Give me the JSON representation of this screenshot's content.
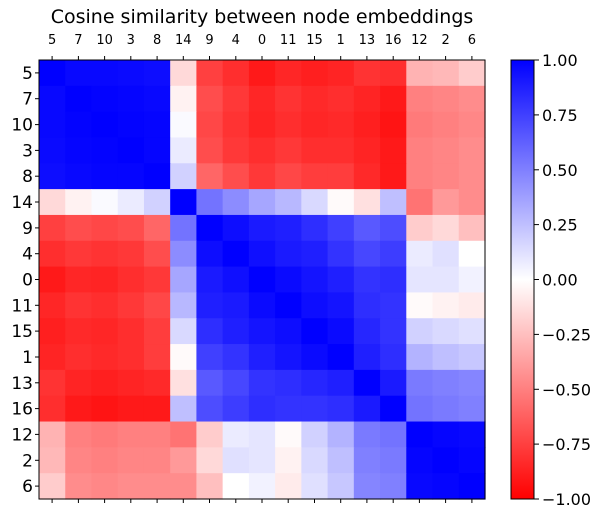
{
  "chart_data": {
    "type": "heatmap",
    "title": "Cosine similarity between node embeddings",
    "labels": [
      "5",
      "7",
      "10",
      "3",
      "8",
      "14",
      "9",
      "4",
      "0",
      "11",
      "15",
      "1",
      "13",
      "16",
      "12",
      "2",
      "6"
    ],
    "colormap": "bwr",
    "vmin": -1.0,
    "vmax": 1.0,
    "colorbar_ticks": [
      "1.00",
      "0.75",
      "0.50",
      "0.25",
      "0.00",
      "−0.25",
      "−0.50",
      "−0.75",
      "−1.00"
    ],
    "colorbar_tick_values": [
      1.0,
      0.75,
      0.5,
      0.25,
      0.0,
      -0.25,
      -0.5,
      -0.75,
      -1.0
    ],
    "values": [
      [
        1.0,
        0.97,
        0.97,
        0.96,
        0.95,
        -0.15,
        -0.75,
        -0.82,
        -0.9,
        -0.85,
        -0.88,
        -0.86,
        -0.8,
        -0.82,
        -0.3,
        -0.28,
        -0.2
      ],
      [
        0.97,
        1.0,
        0.99,
        0.98,
        0.97,
        -0.05,
        -0.7,
        -0.78,
        -0.85,
        -0.8,
        -0.84,
        -0.82,
        -0.86,
        -0.9,
        -0.5,
        -0.48,
        -0.45
      ],
      [
        0.97,
        0.99,
        1.0,
        0.99,
        0.98,
        0.02,
        -0.72,
        -0.8,
        -0.86,
        -0.82,
        -0.85,
        -0.84,
        -0.88,
        -0.92,
        -0.52,
        -0.5,
        -0.47
      ],
      [
        0.96,
        0.98,
        0.99,
        1.0,
        0.98,
        0.08,
        -0.7,
        -0.78,
        -0.82,
        -0.78,
        -0.82,
        -0.82,
        -0.86,
        -0.9,
        -0.5,
        -0.48,
        -0.45
      ],
      [
        0.95,
        0.97,
        0.98,
        0.98,
        1.0,
        0.18,
        -0.6,
        -0.7,
        -0.78,
        -0.72,
        -0.76,
        -0.76,
        -0.84,
        -0.9,
        -0.5,
        -0.48,
        -0.45
      ],
      [
        -0.15,
        -0.05,
        0.02,
        0.08,
        0.18,
        1.0,
        0.55,
        0.45,
        0.35,
        0.28,
        0.15,
        -0.02,
        -0.12,
        0.25,
        -0.55,
        -0.4,
        -0.45
      ],
      [
        -0.75,
        -0.7,
        -0.72,
        -0.7,
        -0.6,
        0.55,
        1.0,
        0.95,
        0.9,
        0.88,
        0.82,
        0.75,
        0.65,
        0.7,
        -0.2,
        -0.15,
        -0.25
      ],
      [
        -0.82,
        -0.78,
        -0.8,
        -0.78,
        -0.7,
        0.45,
        0.95,
        1.0,
        0.94,
        0.9,
        0.88,
        0.8,
        0.72,
        0.76,
        0.08,
        0.12,
        0.0
      ],
      [
        -0.9,
        -0.85,
        -0.86,
        -0.82,
        -0.78,
        0.35,
        0.9,
        0.94,
        1.0,
        0.96,
        0.92,
        0.88,
        0.8,
        0.82,
        0.1,
        0.1,
        0.05
      ],
      [
        -0.85,
        -0.8,
        -0.82,
        -0.78,
        -0.72,
        0.28,
        0.88,
        0.9,
        0.96,
        1.0,
        0.95,
        0.92,
        0.82,
        0.8,
        -0.02,
        -0.05,
        -0.08
      ],
      [
        -0.88,
        -0.84,
        -0.85,
        -0.82,
        -0.76,
        0.15,
        0.82,
        0.88,
        0.92,
        0.95,
        1.0,
        0.96,
        0.85,
        0.8,
        0.18,
        0.15,
        0.12
      ],
      [
        -0.86,
        -0.82,
        -0.84,
        -0.82,
        -0.76,
        -0.02,
        0.75,
        0.8,
        0.88,
        0.92,
        0.96,
        1.0,
        0.88,
        0.82,
        0.3,
        0.25,
        0.22
      ],
      [
        -0.8,
        -0.86,
        -0.88,
        -0.86,
        -0.84,
        -0.12,
        0.65,
        0.72,
        0.8,
        0.82,
        0.85,
        0.88,
        1.0,
        0.9,
        0.52,
        0.5,
        0.48
      ],
      [
        -0.82,
        -0.9,
        -0.92,
        -0.9,
        -0.9,
        0.25,
        0.7,
        0.76,
        0.82,
        0.8,
        0.8,
        0.82,
        0.9,
        1.0,
        0.55,
        0.52,
        0.5
      ],
      [
        -0.3,
        -0.5,
        -0.52,
        -0.5,
        -0.5,
        -0.55,
        -0.2,
        0.08,
        0.1,
        -0.02,
        0.18,
        0.3,
        0.52,
        0.55,
        1.0,
        0.98,
        0.97
      ],
      [
        -0.28,
        -0.48,
        -0.5,
        -0.48,
        -0.48,
        -0.4,
        -0.15,
        0.12,
        0.1,
        -0.05,
        0.15,
        0.25,
        0.5,
        0.52,
        0.98,
        1.0,
        0.98
      ],
      [
        -0.2,
        -0.45,
        -0.47,
        -0.45,
        -0.45,
        -0.45,
        -0.25,
        0.0,
        0.05,
        -0.08,
        0.12,
        0.22,
        0.48,
        0.5,
        0.97,
        0.98,
        1.0
      ]
    ]
  }
}
